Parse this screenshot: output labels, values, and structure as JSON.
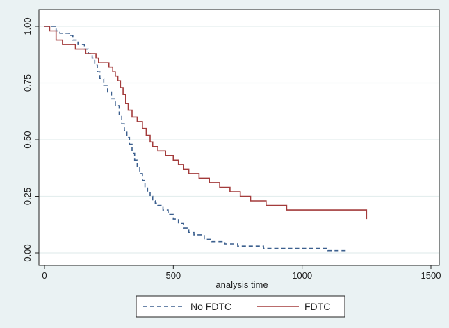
{
  "chart_data": {
    "type": "line",
    "title": "",
    "xlabel": "analysis time",
    "ylabel": "",
    "xlim": [
      0,
      1500
    ],
    "ylim": [
      0,
      1
    ],
    "x_ticks": [
      0,
      500,
      1000,
      1500
    ],
    "y_ticks": [
      0,
      0.25,
      0.5,
      0.75,
      1
    ],
    "x_tick_labels": [
      "0",
      "500",
      "1000",
      "1500"
    ],
    "y_tick_labels": [
      "0.00",
      "0.25",
      "0.50",
      "0.75",
      "1.00"
    ],
    "grid": "horizontal",
    "legend_position": "bottom",
    "series": [
      {
        "name": "No FDTC",
        "color": "#3b5f8e",
        "dash": "dashed",
        "x": [
          0,
          45,
          60,
          95,
          110,
          130,
          155,
          170,
          185,
          195,
          205,
          215,
          230,
          245,
          260,
          275,
          290,
          300,
          310,
          320,
          330,
          340,
          350,
          360,
          370,
          380,
          390,
          400,
          410,
          420,
          430,
          440,
          460,
          480,
          500,
          520,
          540,
          560,
          580,
          620,
          650,
          700,
          750,
          850,
          1000,
          1100,
          1170
        ],
        "y": [
          1.0,
          0.98,
          0.97,
          0.96,
          0.94,
          0.92,
          0.9,
          0.88,
          0.86,
          0.83,
          0.8,
          0.77,
          0.74,
          0.71,
          0.68,
          0.65,
          0.61,
          0.57,
          0.54,
          0.51,
          0.48,
          0.44,
          0.41,
          0.38,
          0.35,
          0.32,
          0.29,
          0.27,
          0.25,
          0.23,
          0.22,
          0.21,
          0.19,
          0.17,
          0.15,
          0.13,
          0.11,
          0.09,
          0.08,
          0.06,
          0.05,
          0.04,
          0.03,
          0.02,
          0.02,
          0.01,
          0.0
        ]
      },
      {
        "name": "FDTC",
        "color": "#a33b3b",
        "dash": "solid",
        "x": [
          0,
          20,
          45,
          70,
          120,
          160,
          200,
          210,
          250,
          265,
          275,
          285,
          295,
          305,
          315,
          325,
          340,
          360,
          380,
          395,
          410,
          420,
          440,
          470,
          500,
          520,
          540,
          560,
          600,
          640,
          680,
          720,
          760,
          800,
          860,
          940,
          1250
        ],
        "y": [
          1.0,
          0.98,
          0.94,
          0.92,
          0.9,
          0.88,
          0.86,
          0.84,
          0.82,
          0.8,
          0.78,
          0.76,
          0.73,
          0.7,
          0.66,
          0.63,
          0.6,
          0.58,
          0.55,
          0.52,
          0.49,
          0.47,
          0.45,
          0.43,
          0.41,
          0.39,
          0.37,
          0.35,
          0.33,
          0.31,
          0.29,
          0.27,
          0.25,
          0.23,
          0.21,
          0.19,
          0.15
        ]
      }
    ]
  }
}
